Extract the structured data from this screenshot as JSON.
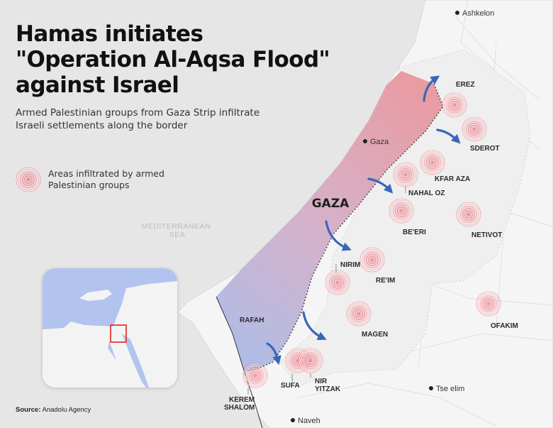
{
  "title": {
    "lines": [
      "Hamas initiates",
      "\"Operation Al-Aqsa Flood\"",
      "against Israel"
    ]
  },
  "subtitle": {
    "lines": [
      "Armed Palestinian groups from Gaza Strip infiltrate",
      "Israeli settlements along the border"
    ]
  },
  "legend": {
    "lines": [
      "Areas infiltrated by armed",
      "Palestinian groups"
    ]
  },
  "source": {
    "label": "Source:",
    "value": "Anadolu Agency"
  },
  "sea_label": {
    "lines": [
      "MEDITERRANEAN",
      "SEA"
    ]
  },
  "strip_label": "GAZA",
  "cities": [
    {
      "id": "ashkelon",
      "name": "Ashkelon"
    },
    {
      "id": "gaza",
      "name": "Gaza"
    },
    {
      "id": "tse-elim",
      "name": "Tse elim"
    },
    {
      "id": "naveh",
      "name": "Naveh"
    }
  ],
  "infiltrated_areas": [
    {
      "id": "erez",
      "lines": [
        "EREZ"
      ]
    },
    {
      "id": "sderot",
      "lines": [
        "SDEROT"
      ]
    },
    {
      "id": "kfar-aza",
      "lines": [
        "KFAR AZA"
      ]
    },
    {
      "id": "nahal-oz",
      "lines": [
        "NAHAL OZ"
      ]
    },
    {
      "id": "beeri",
      "lines": [
        "BE'ERI"
      ]
    },
    {
      "id": "netivot",
      "lines": [
        "NETIVOT"
      ]
    },
    {
      "id": "nirim",
      "lines": [
        "NIRIM"
      ]
    },
    {
      "id": "reim",
      "lines": [
        "RE'IM"
      ]
    },
    {
      "id": "rafah",
      "lines": [
        "RAFAH"
      ]
    },
    {
      "id": "magen",
      "lines": [
        "MAGEN"
      ]
    },
    {
      "id": "ofakim",
      "lines": [
        "OFAKIM"
      ]
    },
    {
      "id": "kerem-shalom",
      "lines": [
        "KEREM",
        "SHALOM"
      ]
    },
    {
      "id": "sufa",
      "lines": [
        "SUFA"
      ]
    },
    {
      "id": "nir-yitzak",
      "lines": [
        "NIR",
        "YITZAK"
      ]
    }
  ],
  "colors": {
    "sea": "#e6e6e6",
    "land": "#f6f6f6",
    "strip_north": "#e8929a",
    "strip_south": "#a8b6e4",
    "arrow": "#3a66b8",
    "marker": "#e03040",
    "inset_sea": "#b2c3ef",
    "inset_box": "#e53935"
  }
}
